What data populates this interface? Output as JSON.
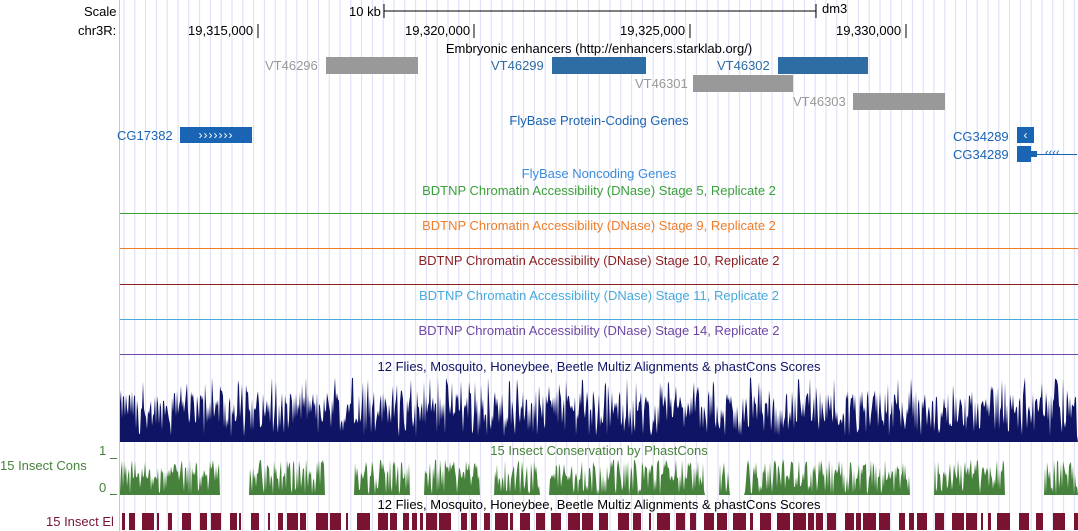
{
  "ruler": {
    "scale_label": "Scale",
    "chrom_label": "chr3R:",
    "scale_bar_label": "10 kb",
    "assembly": "dm3",
    "positions": [
      "19,315,000",
      "19,320,000",
      "19,325,000",
      "19,330,000"
    ]
  },
  "enhancers": {
    "title": "Embryonic enhancers (http://enhancers.starklab.org/)",
    "features": [
      {
        "name": "VT46296",
        "color": "#999999",
        "label_color": "#999999"
      },
      {
        "name": "VT46299",
        "color": "#2e6ca4",
        "label_color": "#2e6ca4"
      },
      {
        "name": "VT46302",
        "color": "#2e6ca4",
        "label_color": "#2e6ca4"
      },
      {
        "name": "VT46301",
        "color": "#999999",
        "label_color": "#999999"
      },
      {
        "name": "VT46303",
        "color": "#999999",
        "label_color": "#999999"
      }
    ]
  },
  "protein_genes": {
    "title": "FlyBase Protein-Coding Genes",
    "color": "#1a64b4",
    "genes": [
      {
        "name": "CG17382",
        "arrows": "›››››››"
      },
      {
        "name": "CG34289",
        "arrows": "‹"
      },
      {
        "name": "CG34289",
        "arrows": "‹‹‹‹"
      }
    ]
  },
  "noncoding_genes": {
    "title": "FlyBase Noncoding Genes",
    "color": "#3c8cdc"
  },
  "dnase_tracks": [
    {
      "title": "BDTNP Chromatin Accessibility (DNase) Stage 5, Replicate 2",
      "color": "#3aa03a"
    },
    {
      "title": "BDTNP Chromatin Accessibility (DNase) Stage 9, Replicate 2",
      "color": "#f07d28"
    },
    {
      "title": "BDTNP Chromatin Accessibility (DNase) Stage 10, Replicate 2",
      "color": "#8c1e1e"
    },
    {
      "title": "BDTNP Chromatin Accessibility (DNase) Stage 11, Replicate 2",
      "color": "#46aadc"
    },
    {
      "title": "BDTNP Chromatin Accessibility (DNase) Stage 14, Replicate 2",
      "color": "#6e46a5"
    }
  ],
  "multiz": {
    "title": "12 Flies, Mosquito, Honeybee, Beetle Multiz Alignments & phastCons Scores",
    "color": "#0f1464"
  },
  "phastcons": {
    "title": "15 Insect Conservation by PhastCons",
    "side_label": "15 Insect Cons",
    "axis_max": "1",
    "axis_min": "0",
    "color": "#46823c"
  },
  "elements": {
    "title": "12 Flies, Mosquito, Honeybee, Beetle Multiz Alignments & phastCons Scores",
    "side_label": "15 Insect El",
    "color": "#781432"
  }
}
